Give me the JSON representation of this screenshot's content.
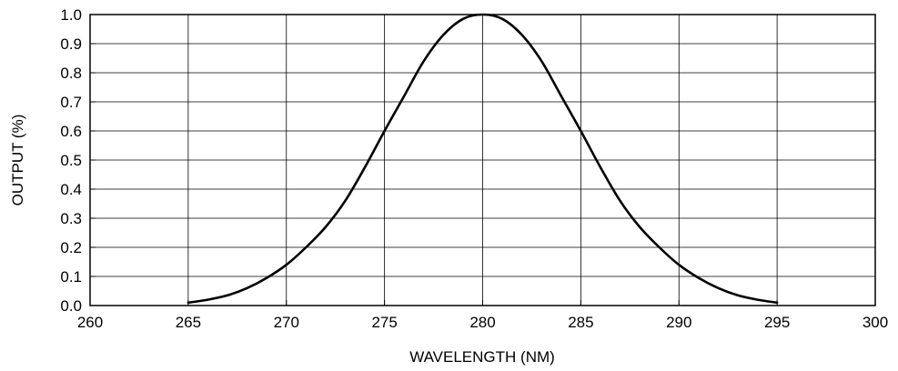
{
  "chart_data": {
    "type": "line",
    "title": "",
    "xlabel": "WAVELENGTH (NM)",
    "ylabel": "OUTPUT (%)",
    "xlim": [
      260,
      300
    ],
    "ylim": [
      0.0,
      1.0
    ],
    "x_ticks": [
      "260",
      "265",
      "270",
      "275",
      "280",
      "285",
      "290",
      "295",
      "300"
    ],
    "y_ticks": [
      "0.0",
      "0.1",
      "0.2",
      "0.3",
      "0.4",
      "0.5",
      "0.6",
      "0.7",
      "0.8",
      "0.9",
      "1.0"
    ],
    "grid": true,
    "legend": "none",
    "line_color": "#000000",
    "grid_color": "#000000",
    "series": [
      {
        "x": [
          265,
          266,
          267,
          268,
          269,
          270,
          271,
          272,
          273,
          274,
          275,
          276,
          277,
          278,
          279,
          280,
          281,
          282,
          283,
          284,
          285,
          286,
          287,
          288,
          289,
          290,
          291,
          292,
          293,
          294,
          295
        ],
        "y": [
          0.01,
          0.02,
          0.035,
          0.06,
          0.095,
          0.14,
          0.2,
          0.27,
          0.36,
          0.475,
          0.6,
          0.72,
          0.84,
          0.93,
          0.985,
          1.0,
          0.985,
          0.93,
          0.84,
          0.72,
          0.6,
          0.475,
          0.36,
          0.27,
          0.2,
          0.14,
          0.095,
          0.06,
          0.035,
          0.02,
          0.01
        ]
      }
    ]
  }
}
